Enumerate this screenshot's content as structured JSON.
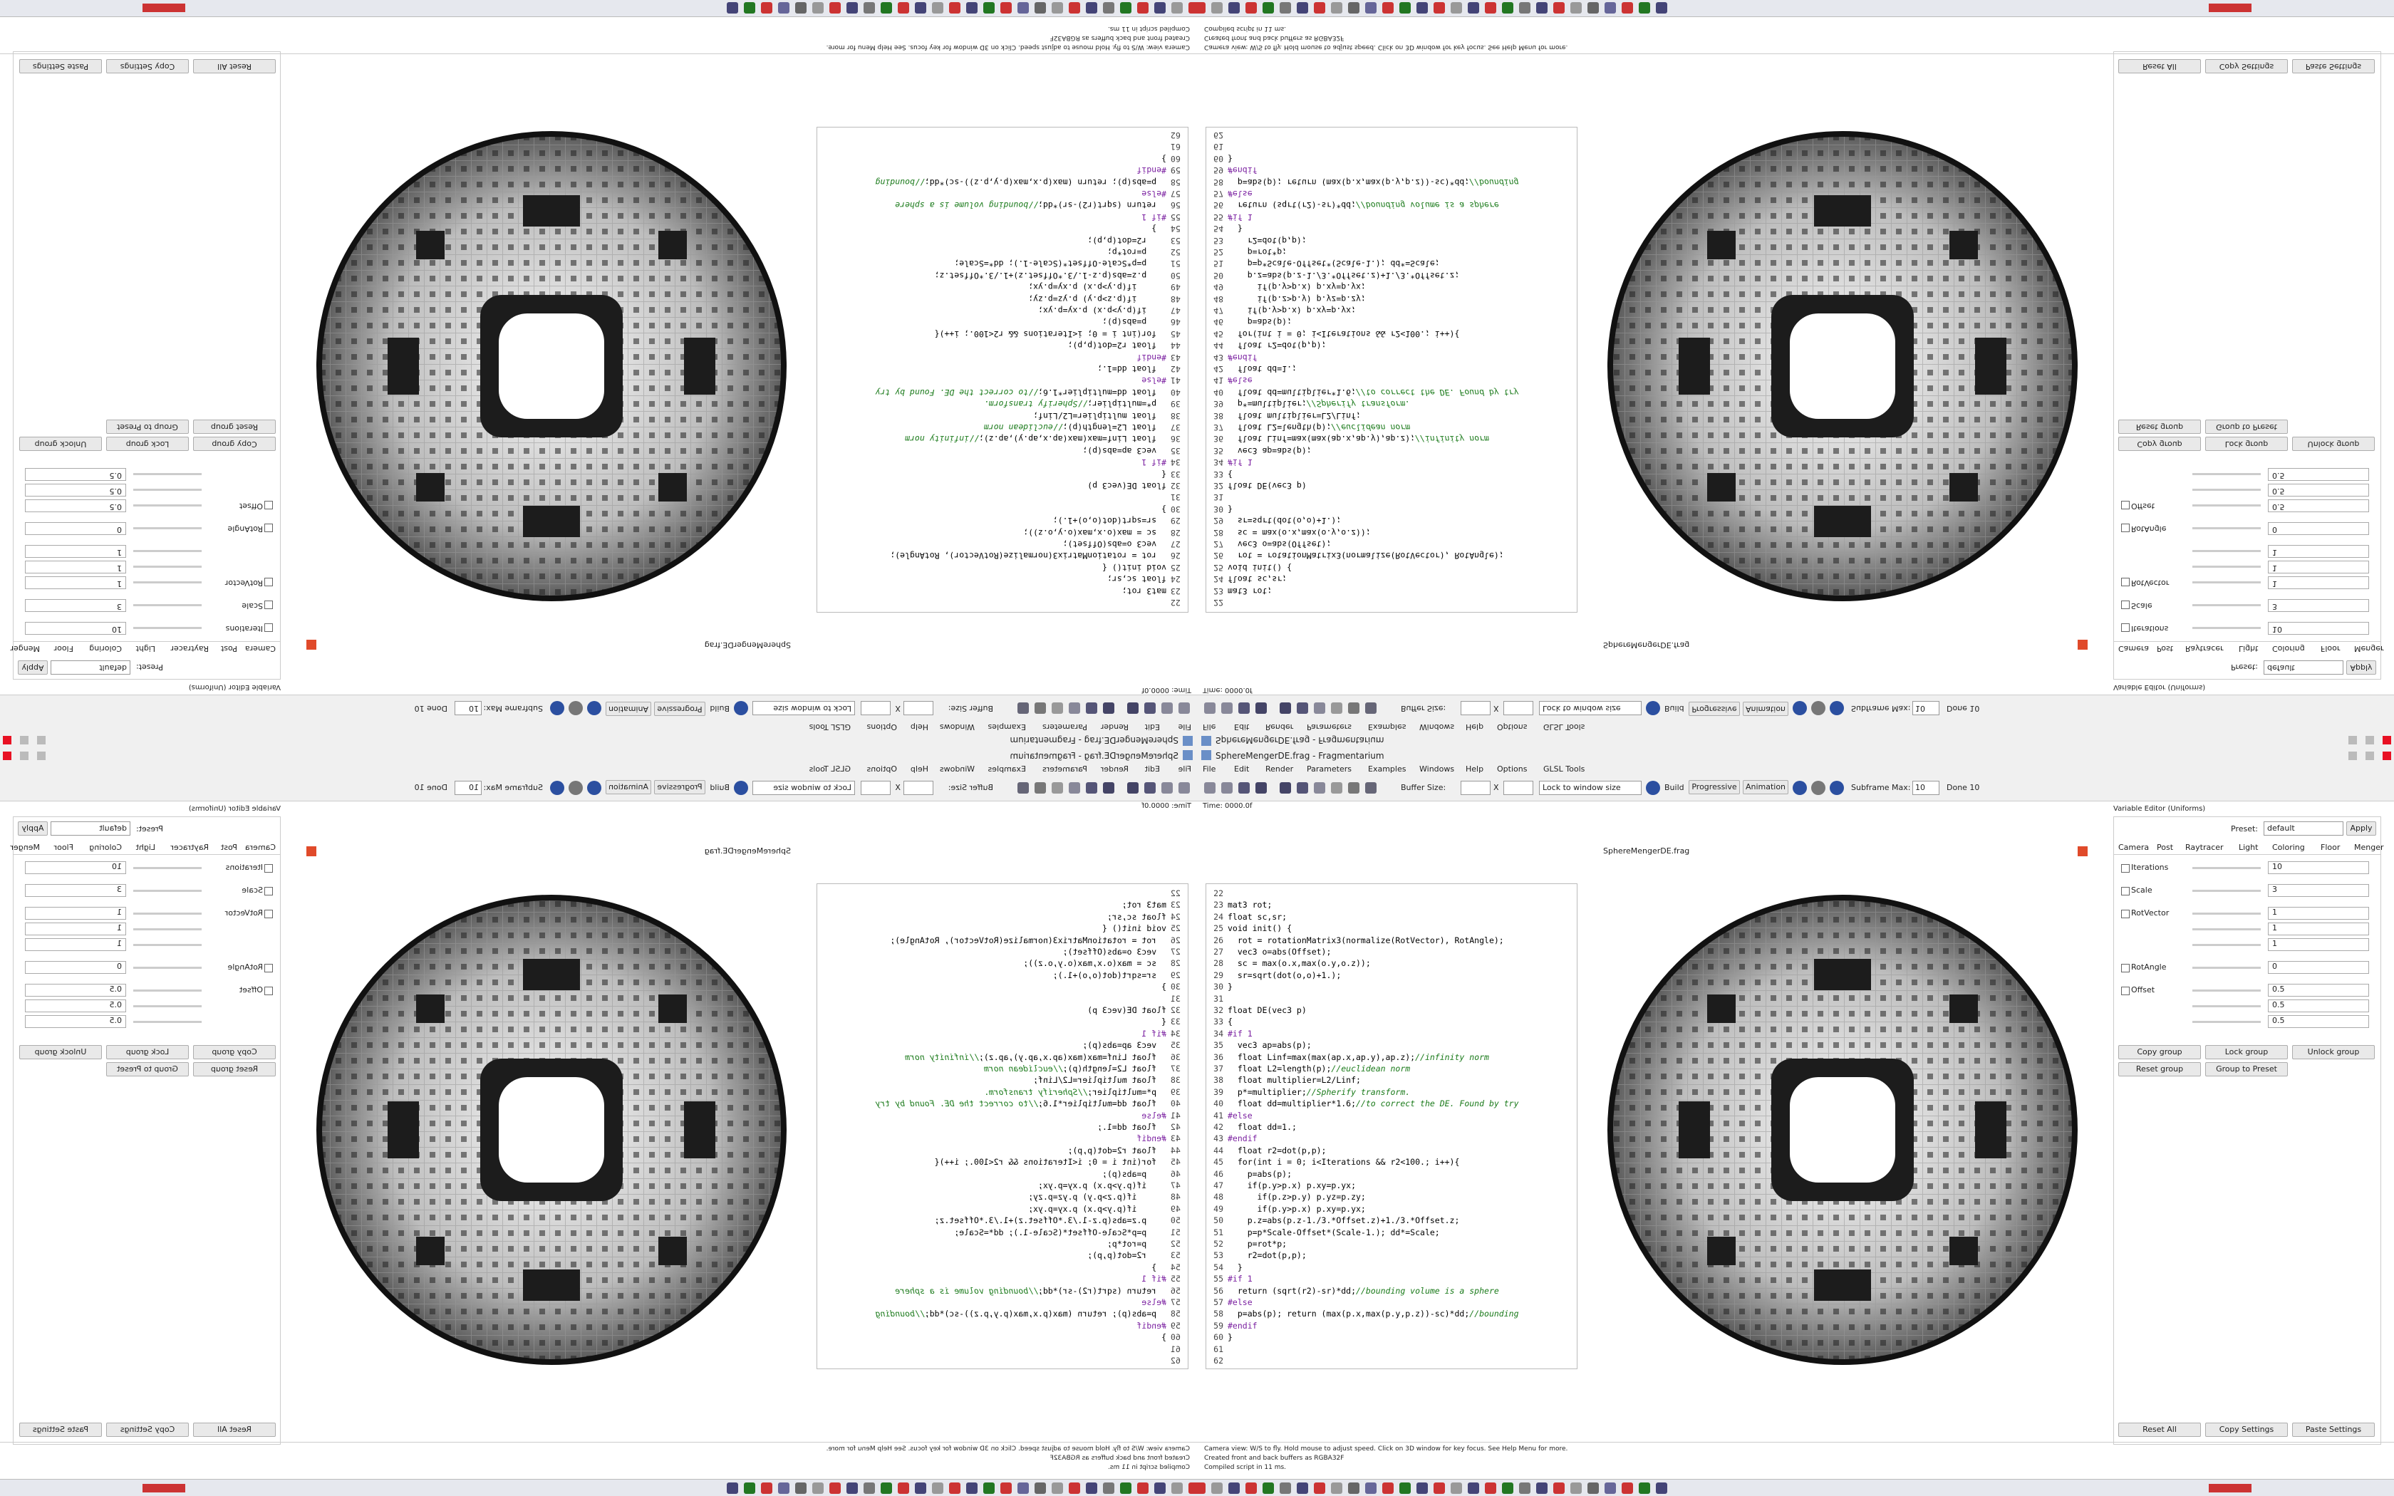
{
  "window": {
    "title": "SphereMengerDE.frag - Fragmentarium"
  },
  "menu": [
    "File",
    "Edit",
    "Render",
    "Parameters",
    "Examples",
    "Windows",
    "Help",
    "Options",
    "GLSL Tools"
  ],
  "toolbar": {
    "lock": "Lock to window size",
    "buffer_label": "Buffer Size:",
    "buffer_x": "X",
    "build": "Build",
    "progressive": "Progressive",
    "animation": "Animation",
    "subframe_label": "Subframe Max:",
    "subframe_value": 10,
    "done": "Done 10"
  },
  "time": "Time: 0000.0f",
  "tab": "SphereMengerDE.frag",
  "code": {
    "lines": [
      {
        "number": 22
      },
      {
        "number": 23,
        "code": "mat3 rot;"
      },
      {
        "number": 24,
        "code": "float sc,sr;"
      },
      {
        "number": 25,
        "code": "void init() {"
      },
      {
        "number": 26,
        "code": "  rot = rotationMatrix3(normalize(RotVector), RotAngle);"
      },
      {
        "number": 27,
        "code": "  vec3 o=abs(Offset);"
      },
      {
        "number": 28,
        "code": "  sc = max(o.x,max(o.y,o.z));"
      },
      {
        "number": 29,
        "code": "  sr=sqrt(dot(o,o)+1.);"
      },
      {
        "number": 30,
        "code": "}"
      },
      {
        "number": 31
      },
      {
        "number": 32,
        "code": "float DE(vec3 p)"
      },
      {
        "number": 33,
        "code": "{"
      },
      {
        "number": 34,
        "code": "#if 1"
      },
      {
        "number": 35,
        "code": "  vec3 ap=abs(p);"
      },
      {
        "number": 36,
        "code": "  float Linf=max(max(ap.x,ap.y),ap.z);",
        "comment": "//infinity norm"
      },
      {
        "number": 37,
        "code": "  float L2=length(p);",
        "comment": "//euclidean norm"
      },
      {
        "number": 38,
        "code": "  float multiplier=L2/Linf;"
      },
      {
        "number": 39,
        "code": "  p*=multiplier;",
        "comment": "//Spherify transform."
      },
      {
        "number": 40,
        "code": "  float dd=multiplier*1.6;",
        "comment": "//to correct the DE. Found by try"
      },
      {
        "number": 41,
        "code": "#else"
      },
      {
        "number": 42,
        "code": "  float dd=1.;"
      },
      {
        "number": 43,
        "code": "#endif"
      },
      {
        "number": 44,
        "code": "  float r2=dot(p,p);"
      },
      {
        "number": 45,
        "code": "  for(int i = 0; i<Iterations && r2<100.; i++){"
      },
      {
        "number": 46,
        "code": "    p=abs(p);"
      },
      {
        "number": 47,
        "code": "    if(p.y>p.x) p.xy=p.yx;"
      },
      {
        "number": 48,
        "code": "      if(p.z>p.y) p.yz=p.zy;"
      },
      {
        "number": 49,
        "code": "      if(p.y>p.x) p.xy=p.yx;"
      },
      {
        "number": 50,
        "code": "    p.z=abs(p.z-1./3.*Offset.z)+1./3.*Offset.z;"
      },
      {
        "number": 51,
        "code": "    p=p*Scale-Offset*(Scale-1.); dd*=Scale;"
      },
      {
        "number": 52,
        "code": "    p=rot*p;"
      },
      {
        "number": 53,
        "code": "    r2=dot(p,p);"
      },
      {
        "number": 54,
        "code": "  }"
      },
      {
        "number": 55,
        "code": "#if 1"
      },
      {
        "number": 56,
        "code": "  return (sqrt(r2)-sr)*dd;",
        "comment": "//bounding volume is a sphere"
      },
      {
        "number": 57,
        "code": "#else"
      },
      {
        "number": 58,
        "code": "  p=abs(p); return (max(p.x,max(p.y,p.z))-sc)*dd;",
        "comment": "//bounding"
      },
      {
        "number": 59,
        "code": "#endif"
      },
      {
        "number": 60,
        "code": "}"
      },
      {
        "number": 61
      },
      {
        "number": 62
      }
    ]
  },
  "editor": {
    "title": "Variable Editor (Uniforms)",
    "preset_label": "Preset:",
    "preset": "default",
    "apply": "Apply",
    "tabs": [
      "Camera",
      "Post",
      "Raytracer",
      "Light",
      "Coloring",
      "Floor",
      "Menger"
    ],
    "params": [
      {
        "name": "Iterations",
        "values": [
          10
        ]
      },
      {
        "name": "Scale",
        "values": [
          3
        ]
      },
      {
        "name": "RotVector",
        "values": [
          1,
          1,
          1
        ]
      },
      {
        "name": "RotAngle",
        "values": [
          0
        ]
      },
      {
        "name": "Offset",
        "values": [
          0.5,
          0.5,
          0.5
        ]
      }
    ],
    "group_buttons": [
      "Copy group",
      "Lock group",
      "Unlock group",
      "Reset group",
      "Group to Preset"
    ],
    "bottom_buttons": [
      "Reset All",
      "Copy Settings",
      "Paste Settings"
    ]
  },
  "log": {
    "lines": [
      "Camera view: W/S to fly. Hold mouse to adjust speed. Click on 3D window for key focus. See Help Menu for more.",
      "Created front and back buffers as RGBA32F",
      "Compiled script in 11 ms."
    ]
  }
}
